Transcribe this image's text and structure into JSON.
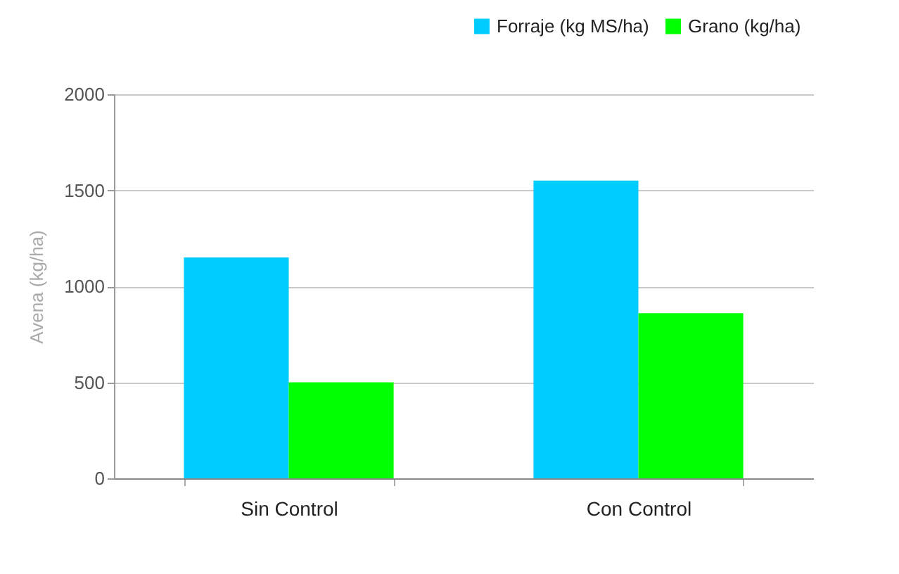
{
  "chart_data": {
    "type": "bar",
    "ylabel": "Avena (kg/ha)",
    "categories": [
      "Sin Control",
      "Con Control"
    ],
    "series": [
      {
        "name": "Forraje (kg MS/ha)",
        "color": "#00ccff",
        "values": [
          1150,
          1550
        ]
      },
      {
        "name": "Grano (kg/ha)",
        "color": "#00ff00",
        "values": [
          500,
          860
        ]
      }
    ],
    "ylim": [
      0,
      2000
    ],
    "yticks": [
      0,
      500,
      1000,
      1500,
      2000
    ],
    "grid": "y",
    "legend": "top right"
  }
}
